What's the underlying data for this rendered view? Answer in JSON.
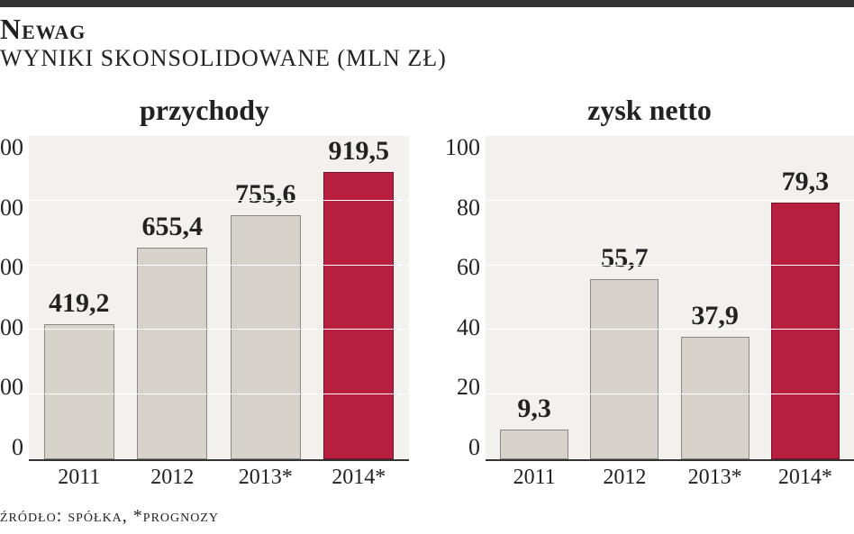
{
  "header": {
    "title": "Newag",
    "subtitle": "WYNIKI SKONSOLIDOWANE (MLN ZŁ)"
  },
  "footer": {
    "source": "źródło: spółka, *prognozy"
  },
  "chart_left": {
    "type": "bar",
    "title": "przychody",
    "categories": [
      "2011",
      "2012",
      "2013*",
      "2014*"
    ],
    "values": [
      419.2,
      655.4,
      755.6,
      919.5
    ],
    "labels": [
      "419,2",
      "655,4",
      "755,6",
      "919,5"
    ],
    "bar_colors": [
      "#d7d3cb",
      "#d7d3cb",
      "#d7d3cb",
      "#b81e3e"
    ],
    "bar_border_colors": [
      "#888888",
      "#888888",
      "#888888",
      "#7a1229"
    ],
    "ymin": 0,
    "ymax": 1000,
    "ytick_step": 200,
    "yticks": [
      "0",
      "00",
      "00",
      "00",
      "00",
      "00"
    ],
    "background_color": "#f3f1ed",
    "grid_color": "#ffffff",
    "bar_width": 0.86,
    "label_fontsize": 30,
    "axis_fontsize": 24,
    "title_fontsize": 32
  },
  "chart_right": {
    "type": "bar",
    "title": "zysk netto",
    "categories": [
      "2011",
      "2012",
      "2013*",
      "2014*"
    ],
    "values": [
      9.3,
      55.7,
      37.9,
      79.3
    ],
    "labels": [
      "9,3",
      "55,7",
      "37,9",
      "79,3"
    ],
    "bar_colors": [
      "#d7d3cb",
      "#d7d3cb",
      "#d7d3cb",
      "#b81e3e"
    ],
    "bar_border_colors": [
      "#888888",
      "#888888",
      "#888888",
      "#7a1229"
    ],
    "ymin": 0,
    "ymax": 100,
    "ytick_step": 20,
    "yticks": [
      "0",
      "20",
      "40",
      "60",
      "80",
      "100"
    ],
    "background_color": "#f3f1ed",
    "grid_color": "#ffffff",
    "bar_width": 0.86,
    "label_fontsize": 30,
    "axis_fontsize": 24,
    "title_fontsize": 32
  },
  "colors": {
    "text": "#222222",
    "header_rule": "#333333",
    "axis_line": "#333333",
    "grid": "#ffffff",
    "plot_bg": "#f3f1ed",
    "bar_default": "#d7d3cb",
    "bar_highlight": "#b81e3e"
  }
}
